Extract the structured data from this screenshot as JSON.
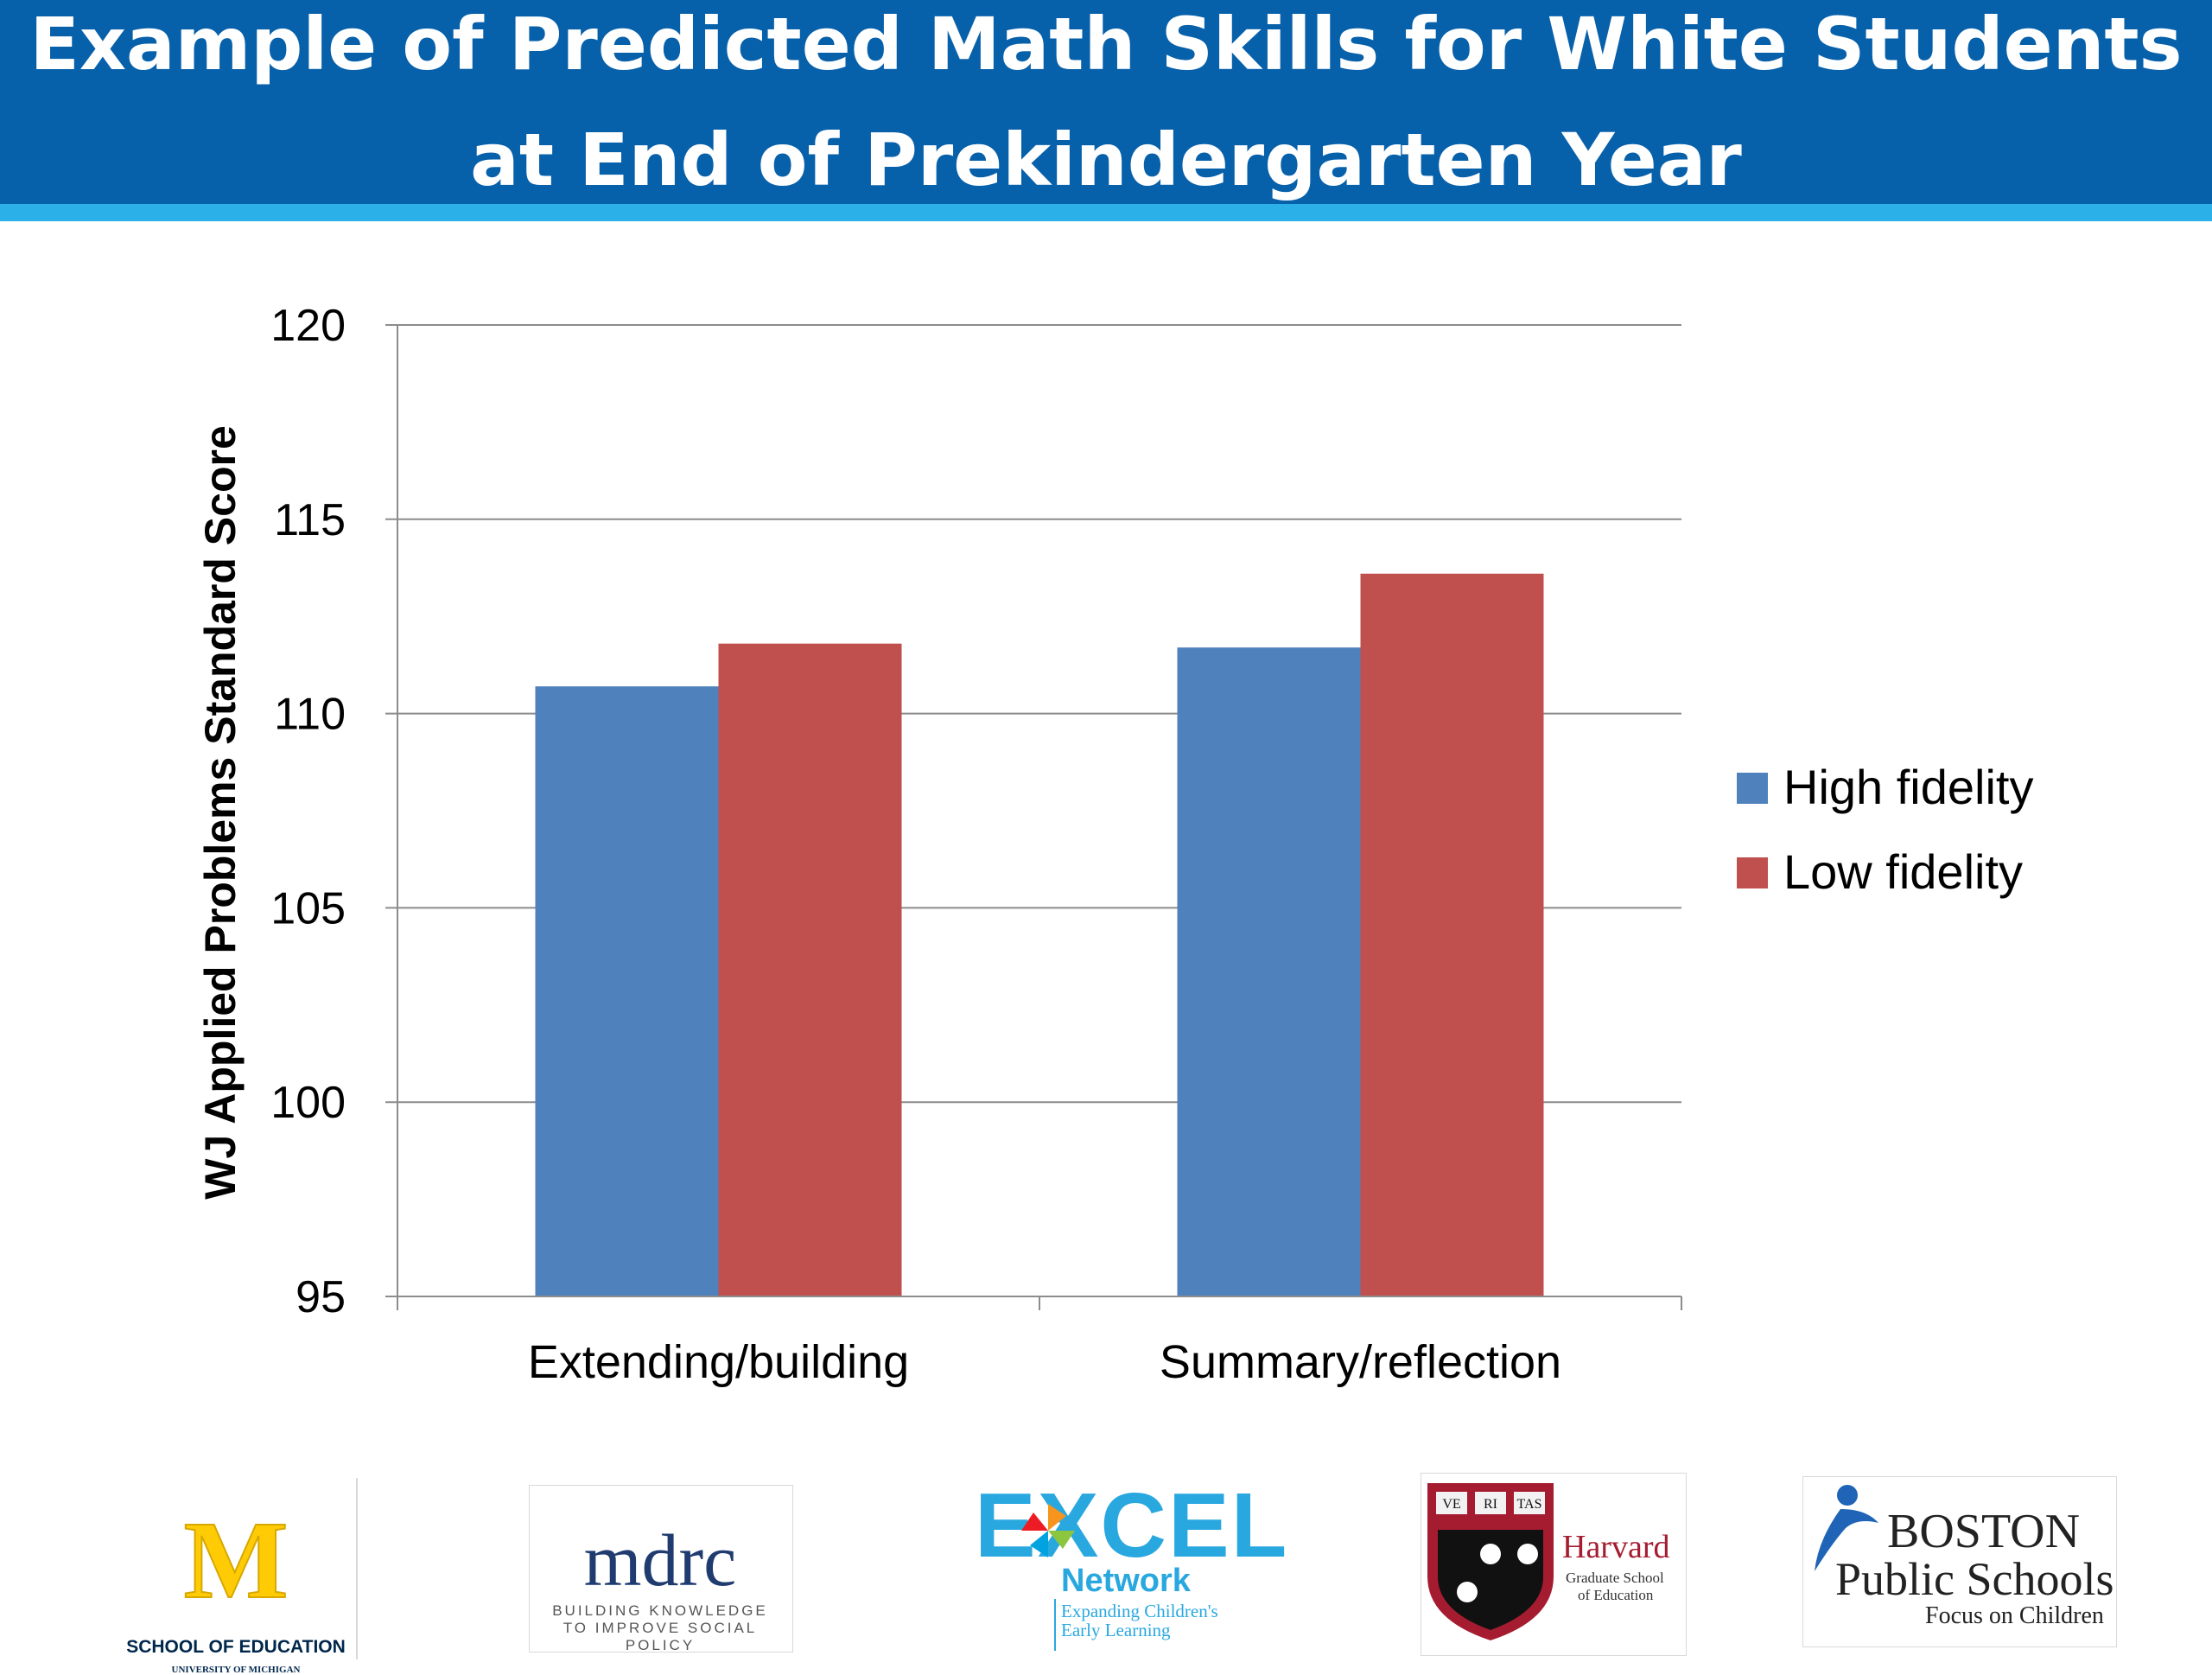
{
  "slide": {
    "title_line1": "Example of Predicted Math Skills for White Students",
    "title_line2": "at End of Prekindergarten Year"
  },
  "colors": {
    "header_bg": "#0760aa",
    "header_stripe": "#2cb0e8",
    "high_fidelity": "#4f81bd",
    "low_fidelity": "#c0504d",
    "gridline": "#8c8c8c"
  },
  "chart_data": {
    "type": "bar",
    "categories": [
      "Extending/building",
      "Summary/reflection"
    ],
    "series": [
      {
        "name": "High fidelity",
        "values": [
          110.7,
          111.7
        ]
      },
      {
        "name": "Low fidelity",
        "values": [
          111.8,
          113.6
        ]
      }
    ],
    "ylabel": "WJ Applied Problems Standard Score",
    "ylim": [
      95,
      120
    ],
    "yticks": [
      95,
      100,
      105,
      110,
      115,
      120
    ],
    "grid": true,
    "legend_position": "right"
  },
  "logos": {
    "umich_letter": "M",
    "umich_line1": "SCHOOL OF EDUCATION",
    "umich_line2": "UNIVERSITY OF MICHIGAN",
    "mdrc_name": "mdrc",
    "mdrc_line1": "BUILDING KNOWLEDGE",
    "mdrc_line2": "TO IMPROVE SOCIAL POLICY",
    "excel_word": "EXCEL",
    "excel_network": "Network",
    "excel_line1": "Expanding Children's",
    "excel_line2": "Early Learning",
    "harvard_name": "Harvard",
    "harvard_line1": "Graduate School",
    "harvard_line2": "of Education",
    "harvard_ve": "VE",
    "harvard_ri": "RI",
    "harvard_tas": "TAS",
    "bps_line1": "BOSTON",
    "bps_line2": "Public Schools",
    "bps_line3": "Focus on Children"
  }
}
